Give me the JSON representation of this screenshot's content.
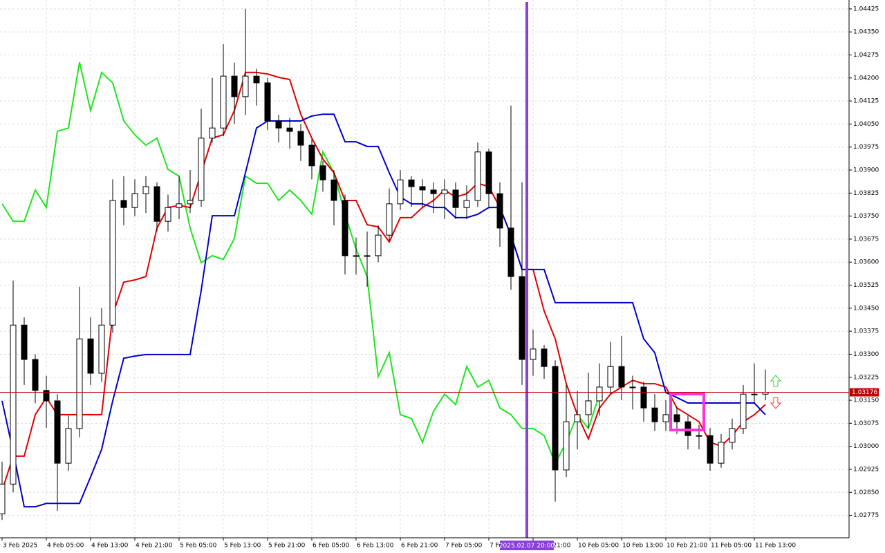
{
  "chart_data": {
    "type": "candlestick",
    "x": [
      "3 Feb 2025",
      null,
      null,
      null,
      "4 Feb 05:00",
      null,
      null,
      null,
      "4 Feb 13:00",
      null,
      null,
      null,
      "4 Feb 21:00",
      null,
      null,
      null,
      "5 Feb 05:00",
      null,
      null,
      null,
      "5 Feb 13:00",
      null,
      null,
      null,
      "5 Feb 21:00",
      null,
      null,
      null,
      "6 Feb 05:00",
      null,
      null,
      null,
      "6 Feb 13:00",
      null,
      null,
      null,
      "6 Feb 21:00",
      null,
      null,
      null,
      "7 Feb 05:00",
      null,
      null,
      null,
      "7 Feb 13:00",
      null,
      null,
      null,
      "7 Feb 21:00",
      null,
      null,
      null,
      "10 Feb 05:00",
      null,
      null,
      null,
      "10 Feb 13:00",
      null,
      null,
      null,
      "10 Feb 21:00",
      null,
      null,
      null,
      "11 Feb 05:00",
      null,
      null,
      null,
      "11 Feb 13:00",
      null
    ],
    "open": [
      1.0278,
      1.02877,
      1.03395,
      1.03283,
      1.03182,
      1.03148,
      1.02945,
      1.03058,
      1.0335,
      1.03238,
      1.03395,
      1.03801,
      1.03778,
      1.03823,
      1.03846,
      1.03733,
      1.03778,
      1.0379,
      1.03801,
      1.04004,
      1.04037,
      1.04206,
      1.04139,
      1.04206,
      1.04184,
      1.0406,
      1.04037,
      1.04026,
      1.03981,
      1.03914,
      1.03868,
      1.03801,
      1.03621,
      1.03621,
      1.03621,
      1.03688,
      1.0379,
      1.03868,
      1.03846,
      1.03835,
      1.03823,
      1.03835,
      1.03778,
      1.03801,
      1.03959,
      1.03823,
      1.03711,
      1.03553,
      1.03283,
      1.03317,
      1.0326,
      1.02923,
      1.0308,
      1.03103,
      1.03148,
      1.03193,
      1.0326,
      1.03193,
      1.03193,
      1.03125,
      1.0308,
      1.03103,
      1.0308,
      1.03035,
      1.03035,
      1.02945,
      1.03013,
      1.03058,
      1.0317,
      1.0317
    ],
    "high": [
      1.0295,
      1.0354,
      1.0342,
      1.033,
      1.0323,
      1.0317,
      1.031,
      1.0352,
      1.0342,
      1.0345,
      1.0387,
      1.0388,
      1.0387,
      1.0388,
      1.0386,
      1.0382,
      1.0388,
      1.039,
      1.041,
      1.042,
      1.0431,
      1.0425,
      1.04425,
      1.0423,
      1.042,
      1.0408,
      1.0407,
      1.0405,
      1.04,
      1.0393,
      1.039,
      1.0382,
      1.0368,
      1.037,
      1.0372,
      1.0384,
      1.039,
      1.0388,
      1.0387,
      1.0386,
      1.0387,
      1.0386,
      1.0385,
      1.0399,
      1.0397,
      1.0386,
      1.0411,
      1.0386,
      1.0338,
      1.0333,
      1.0328,
      1.032,
      1.0318,
      1.0324,
      1.0327,
      1.0334,
      1.0336,
      1.0323,
      1.0321,
      1.0317,
      1.0315,
      1.0313,
      1.031,
      1.0307,
      1.0306,
      1.0304,
      1.0309,
      1.032,
      1.0327,
      1.0325
    ],
    "low": [
      1.0276,
      1.0285,
      1.032,
      1.0314,
      1.0306,
      1.0279,
      1.0292,
      1.0303,
      1.032,
      1.0321,
      1.0337,
      1.0372,
      1.0375,
      1.0376,
      1.037,
      1.037,
      1.0374,
      1.0376,
      1.0378,
      1.0399,
      1.0401,
      1.0405,
      1.0408,
      1.0411,
      1.0403,
      1.0399,
      1.0397,
      1.0393,
      1.0387,
      1.0383,
      1.0372,
      1.0356,
      1.0356,
      1.0352,
      1.036,
      1.0367,
      1.0377,
      1.0378,
      1.0378,
      1.0376,
      1.0374,
      1.0374,
      1.0374,
      1.0378,
      1.0378,
      1.0365,
      1.0351,
      1.032,
      1.0323,
      1.0322,
      1.0282,
      1.029,
      1.0299,
      1.0306,
      1.031,
      1.0317,
      1.0315,
      1.0312,
      1.0308,
      1.0305,
      1.0305,
      1.0304,
      1.0299,
      1.0299,
      1.0292,
      1.0293,
      1.0299,
      1.0304,
      1.0314,
      1.0315
    ],
    "close": [
      1.02877,
      1.03395,
      1.03283,
      1.03182,
      1.03148,
      1.02945,
      1.03058,
      1.0335,
      1.03238,
      1.03395,
      1.03801,
      1.03778,
      1.03823,
      1.03846,
      1.03733,
      1.03778,
      1.0379,
      1.03801,
      1.04004,
      1.04037,
      1.04206,
      1.04139,
      1.04206,
      1.04184,
      1.0406,
      1.04037,
      1.04026,
      1.03981,
      1.03914,
      1.03868,
      1.03801,
      1.03621,
      1.03621,
      1.03621,
      1.03688,
      1.0379,
      1.03868,
      1.03846,
      1.03835,
      1.03823,
      1.03835,
      1.03778,
      1.03801,
      1.03959,
      1.03823,
      1.03711,
      1.03553,
      1.03283,
      1.03317,
      1.0326,
      1.02923,
      1.0308,
      1.03103,
      1.03148,
      1.03193,
      1.0326,
      1.03193,
      1.03193,
      1.03125,
      1.0308,
      1.03103,
      1.0308,
      1.03035,
      1.03035,
      1.02945,
      1.03013,
      1.03058,
      1.0317,
      1.0317,
      1.03176
    ],
    "lines": [
      {
        "color": "#1ee61e",
        "values": [
          1.0379,
          1.03733,
          1.03733,
          1.03835,
          1.03778,
          1.04026,
          1.04037,
          1.04251,
          1.04094,
          1.04218,
          1.04184,
          1.0406,
          1.04015,
          1.03981,
          1.04004,
          1.03902,
          1.0388,
          1.03711,
          1.03598,
          1.03621,
          1.03609,
          1.03677,
          1.0388,
          1.03857,
          1.03857,
          1.03801,
          1.03835,
          1.03801,
          1.03756,
          1.03959,
          1.03891,
          1.03756,
          1.03643,
          1.03553,
          1.03227,
          1.03305,
          1.03103,
          1.03091,
          1.03013,
          1.03114,
          1.0317,
          1.03136,
          1.0326,
          1.03193,
          1.03215,
          1.03125,
          1.03103,
          1.03058,
          1.03058,
          1.03035,
          1.02945,
          1.03013,
          1.03103,
          1.03058,
          1.0317,
          null,
          null,
          null,
          null,
          null,
          null,
          null,
          null,
          null,
          null,
          null,
          null,
          null,
          null,
          null
        ]
      },
      {
        "color": "#e00000",
        "values": [
          1.02855,
          1.02968,
          1.02968,
          1.03103,
          1.03159,
          1.03103,
          1.03103,
          1.03103,
          1.03103,
          1.03103,
          1.03429,
          1.03535,
          1.03542,
          1.03553,
          1.03711,
          1.03778,
          1.03785,
          1.03778,
          1.03891,
          1.04004,
          1.04015,
          1.04094,
          1.04218,
          1.04218,
          1.04213,
          1.04202,
          1.04195,
          1.04082,
          1.04004,
          1.03936,
          1.03891,
          1.03801,
          1.03801,
          1.03722,
          1.03715,
          1.03666,
          1.03745,
          1.03745,
          1.03778,
          1.03801,
          1.03835,
          1.03812,
          1.03823,
          1.03857,
          1.03846,
          1.03778,
          1.03688,
          1.03576,
          1.03576,
          1.03441,
          1.0335,
          1.03204,
          1.03103,
          1.03024,
          1.03125,
          1.0317,
          1.03193,
          1.03215,
          1.03204,
          1.03204,
          1.03193,
          1.03125,
          1.03103,
          1.0308,
          1.03013,
          1.03001,
          1.03035,
          1.0308,
          1.03103,
          1.03136
        ]
      },
      {
        "color": "#0000cc",
        "values": [
          1.03148,
          1.02983,
          1.02803,
          1.02803,
          1.02814,
          1.02814,
          1.02814,
          1.02814,
          1.029,
          1.0299,
          1.03148,
          1.03287,
          1.03294,
          1.03299,
          1.03299,
          1.03299,
          1.03299,
          1.03299,
          1.03508,
          1.03751,
          1.03751,
          1.03751,
          1.03891,
          1.04037,
          1.0406,
          1.0406,
          1.0406,
          1.0406,
          1.04076,
          1.04082,
          1.04082,
          1.03992,
          1.03992,
          1.03977,
          1.03977,
          1.03891,
          1.03812,
          1.0379,
          1.0379,
          1.03778,
          1.03778,
          1.03745,
          1.03745,
          1.03756,
          1.03778,
          1.03778,
          1.03688,
          1.03576,
          1.03576,
          1.03576,
          1.03468,
          1.03468,
          1.03468,
          1.03468,
          1.03468,
          1.03468,
          1.03468,
          1.03468,
          1.0335,
          1.03305,
          1.03175,
          1.03159,
          1.03141,
          1.03141,
          1.03141,
          1.03141,
          1.03141,
          1.03141,
          1.03141,
          1.03103
        ]
      }
    ],
    "current_price": 1.03176,
    "cursor_label": "2025.02.07 20:00",
    "ylim": [
      1.02702,
      1.04454
    ],
    "yticks": [
      1.04425,
      {
        "value": 1.0435,
        "label": "1.04350"
      },
      1.04275,
      {
        "value": 1.042,
        "label": "1.04200"
      },
      1.04125,
      {
        "value": 1.0405,
        "label": "1.04050"
      },
      1.03975,
      {
        "value": 1.039,
        "label": "1.03900"
      },
      1.03825,
      {
        "value": 1.0375,
        "label": "1.03750"
      },
      1.03675,
      {
        "value": 1.036,
        "label": "1.03600"
      },
      1.03525,
      {
        "value": 1.0345,
        "label": "1.03450"
      },
      1.03375,
      {
        "value": 1.033,
        "label": "1.03300"
      },
      1.03225,
      {
        "value": 1.0315,
        "label": "1.03150"
      },
      1.03075,
      {
        "value": 1.03,
        "label": "1.03000"
      },
      1.02925,
      {
        "value": 1.0285,
        "label": "1.02850"
      },
      1.02775
    ],
    "grid": true
  }
}
